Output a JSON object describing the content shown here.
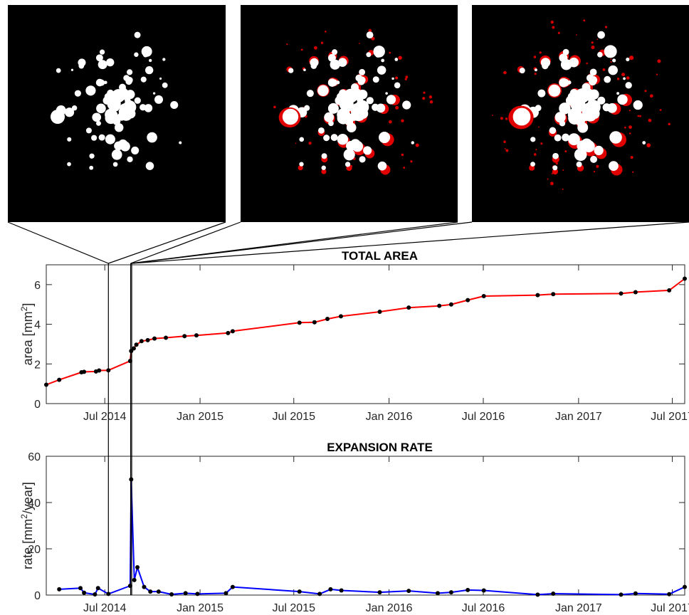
{
  "chart_data": [
    {
      "type": "line",
      "title": "TOTAL AREA",
      "ylabel": "area [mm",
      "ylabel_sup": "2",
      "ylabel_end": "]",
      "xlim": [
        "2014-03-10",
        "2017-07-25"
      ],
      "ylim": [
        0,
        7
      ],
      "yticks": [
        0,
        2,
        4,
        6
      ],
      "xticks": [
        {
          "date": "2014-07-01",
          "label": "Jul 2014"
        },
        {
          "date": "2015-01-01",
          "label": "Jan 2015"
        },
        {
          "date": "2015-07-01",
          "label": "Jul 2015"
        },
        {
          "date": "2016-01-01",
          "label": "Jan 2016"
        },
        {
          "date": "2016-07-01",
          "label": "Jul 2016"
        },
        {
          "date": "2017-01-01",
          "label": "Jan 2017"
        },
        {
          "date": "2017-07-01",
          "label": "Jul 2017"
        }
      ],
      "grid": false,
      "line_color": "#ff0000",
      "marker_color": "#000000",
      "points": [
        {
          "x": "2014-03-10",
          "y": 0.95
        },
        {
          "x": "2014-04-04",
          "y": 1.2
        },
        {
          "x": "2014-05-17",
          "y": 1.58
        },
        {
          "x": "2014-05-22",
          "y": 1.6
        },
        {
          "x": "2014-06-14",
          "y": 1.62
        },
        {
          "x": "2014-06-20",
          "y": 1.67
        },
        {
          "x": "2014-07-08",
          "y": 1.68
        },
        {
          "x": "2014-08-19",
          "y": 2.15
        },
        {
          "x": "2014-08-21",
          "y": 2.65
        },
        {
          "x": "2014-08-26",
          "y": 2.78
        },
        {
          "x": "2014-08-31",
          "y": 2.97
        },
        {
          "x": "2014-09-10",
          "y": 3.15
        },
        {
          "x": "2014-09-22",
          "y": 3.2
        },
        {
          "x": "2014-10-05",
          "y": 3.28
        },
        {
          "x": "2014-10-27",
          "y": 3.32
        },
        {
          "x": "2014-12-02",
          "y": 3.4
        },
        {
          "x": "2014-12-25",
          "y": 3.44
        },
        {
          "x": "2015-02-24",
          "y": 3.56
        },
        {
          "x": "2015-03-05",
          "y": 3.65
        },
        {
          "x": "2015-07-12",
          "y": 4.08
        },
        {
          "x": "2015-08-10",
          "y": 4.1
        },
        {
          "x": "2015-09-04",
          "y": 4.27
        },
        {
          "x": "2015-09-30",
          "y": 4.4
        },
        {
          "x": "2015-12-14",
          "y": 4.63
        },
        {
          "x": "2016-02-08",
          "y": 4.84
        },
        {
          "x": "2016-04-07",
          "y": 4.93
        },
        {
          "x": "2016-04-30",
          "y": 5.0
        },
        {
          "x": "2016-06-01",
          "y": 5.22
        },
        {
          "x": "2016-07-02",
          "y": 5.42
        },
        {
          "x": "2016-10-14",
          "y": 5.47
        },
        {
          "x": "2016-11-13",
          "y": 5.52
        },
        {
          "x": "2017-03-24",
          "y": 5.55
        },
        {
          "x": "2017-04-21",
          "y": 5.62
        },
        {
          "x": "2017-06-25",
          "y": 5.71
        },
        {
          "x": "2017-07-25",
          "y": 6.3
        }
      ]
    },
    {
      "type": "line",
      "title": "EXPANSION RATE",
      "ylabel": "rate [mm",
      "ylabel_sup": "2",
      "ylabel_end": "/year]",
      "xlim": [
        "2014-03-10",
        "2017-07-25"
      ],
      "ylim": [
        0,
        60
      ],
      "yticks": [
        0,
        20,
        40,
        60
      ],
      "xticks": [
        {
          "date": "2014-07-01",
          "label": "Jul 2014"
        },
        {
          "date": "2015-01-01",
          "label": "Jan 2015"
        },
        {
          "date": "2015-07-01",
          "label": "Jul 2015"
        },
        {
          "date": "2016-01-01",
          "label": "Jan 2016"
        },
        {
          "date": "2016-07-01",
          "label": "Jul 2016"
        },
        {
          "date": "2017-01-01",
          "label": "Jan 2017"
        },
        {
          "date": "2017-07-01",
          "label": "Jul 2017"
        }
      ],
      "grid": false,
      "line_color": "#0000ff",
      "marker_color": "#000000",
      "points": [
        {
          "x": "2014-04-04",
          "y": 2.5
        },
        {
          "x": "2014-05-15",
          "y": 3.0
        },
        {
          "x": "2014-05-22",
          "y": 1.0
        },
        {
          "x": "2014-06-12",
          "y": 0.3
        },
        {
          "x": "2014-06-18",
          "y": 3.0
        },
        {
          "x": "2014-07-08",
          "y": 0.5
        },
        {
          "x": "2014-08-19",
          "y": 4.0
        },
        {
          "x": "2014-08-21",
          "y": 50.0
        },
        {
          "x": "2014-08-27",
          "y": 6.5
        },
        {
          "x": "2014-09-02",
          "y": 12.0
        },
        {
          "x": "2014-09-15",
          "y": 3.5
        },
        {
          "x": "2014-09-27",
          "y": 1.5
        },
        {
          "x": "2014-10-13",
          "y": 1.5
        },
        {
          "x": "2014-11-07",
          "y": 0.3
        },
        {
          "x": "2014-12-04",
          "y": 0.8
        },
        {
          "x": "2014-12-27",
          "y": 0.5
        },
        {
          "x": "2015-02-20",
          "y": 0.8
        },
        {
          "x": "2015-03-05",
          "y": 3.5
        },
        {
          "x": "2015-07-12",
          "y": 1.5
        },
        {
          "x": "2015-08-20",
          "y": 0.5
        },
        {
          "x": "2015-09-10",
          "y": 2.5
        },
        {
          "x": "2015-10-01",
          "y": 2.0
        },
        {
          "x": "2015-12-14",
          "y": 1.2
        },
        {
          "x": "2016-02-08",
          "y": 1.8
        },
        {
          "x": "2016-04-04",
          "y": 0.8
        },
        {
          "x": "2016-04-30",
          "y": 1.2
        },
        {
          "x": "2016-06-01",
          "y": 2.2
        },
        {
          "x": "2016-07-02",
          "y": 2.0
        },
        {
          "x": "2016-10-14",
          "y": 0.2
        },
        {
          "x": "2016-11-13",
          "y": 0.6
        },
        {
          "x": "2017-03-24",
          "y": 0.2
        },
        {
          "x": "2017-04-21",
          "y": 0.7
        },
        {
          "x": "2017-06-25",
          "y": 0.4
        },
        {
          "x": "2017-07-25",
          "y": 3.5
        }
      ]
    }
  ],
  "snapshots": [
    {
      "name": "snapshot-1",
      "date": "2014-07-08"
    },
    {
      "name": "snapshot-2",
      "date": "2014-08-20"
    },
    {
      "name": "snapshot-3",
      "date": "2014-08-22"
    }
  ]
}
